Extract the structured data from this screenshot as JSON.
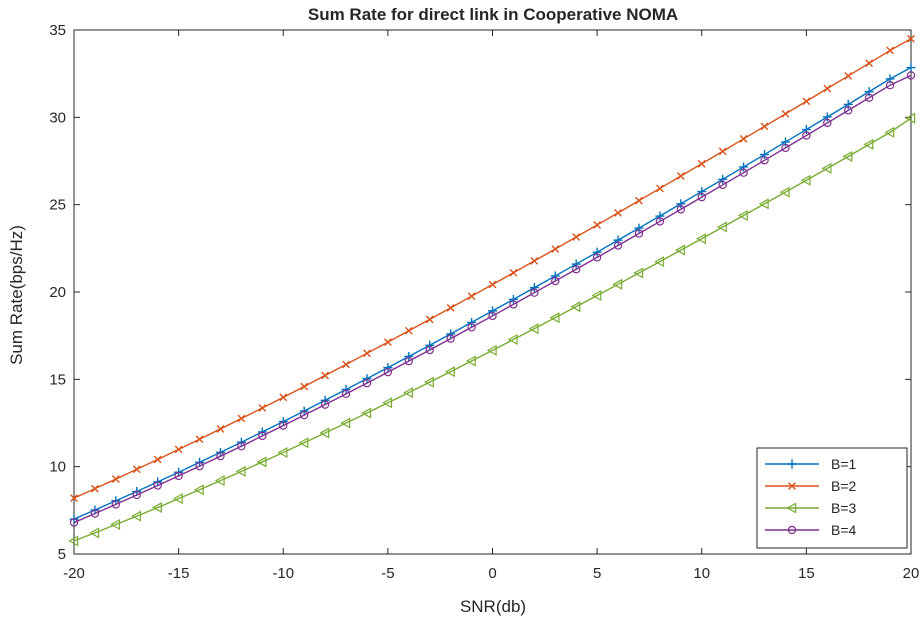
{
  "chart_data": {
    "type": "line",
    "title": "Sum Rate for direct link in Cooperative NOMA",
    "xlabel": "SNR(db)",
    "ylabel": "Sum Rate(bps/Hz)",
    "xlim": [
      -20,
      20
    ],
    "ylim": [
      5,
      35
    ],
    "xticks": [
      -20,
      -15,
      -10,
      -5,
      0,
      5,
      10,
      15,
      20
    ],
    "yticks": [
      5,
      10,
      15,
      20,
      25,
      30,
      35
    ],
    "grid": false,
    "legend_position": "bottom-right",
    "x": [
      -20,
      -19,
      -18,
      -17,
      -16,
      -15,
      -14,
      -13,
      -12,
      -11,
      -10,
      -9,
      -8,
      -7,
      -6,
      -5,
      -4,
      -3,
      -2,
      -1,
      0,
      1,
      2,
      3,
      4,
      5,
      6,
      7,
      8,
      9,
      10,
      11,
      12,
      13,
      14,
      15,
      16,
      17,
      18,
      19,
      20
    ],
    "series": [
      {
        "name": "B=1",
        "color": "#0072BD",
        "marker": "plus",
        "values": [
          7.0,
          7.52,
          8.05,
          8.58,
          9.13,
          9.68,
          10.25,
          10.82,
          11.4,
          11.99,
          12.58,
          13.19,
          13.8,
          14.42,
          15.04,
          15.67,
          16.31,
          16.95,
          17.6,
          18.26,
          18.92,
          19.58,
          20.25,
          20.92,
          21.6,
          22.28,
          22.97,
          23.66,
          24.35,
          25.05,
          25.75,
          26.45,
          27.16,
          27.87,
          28.59,
          29.3,
          30.02,
          30.74,
          31.47,
          32.2,
          32.85
        ]
      },
      {
        "name": "B=2",
        "color": "#D95319",
        "marker": "x",
        "values": [
          8.2,
          8.74,
          9.29,
          9.85,
          10.41,
          10.99,
          11.57,
          12.16,
          12.76,
          13.36,
          13.97,
          14.59,
          15.22,
          15.85,
          16.49,
          17.13,
          17.78,
          18.43,
          19.09,
          19.76,
          20.43,
          21.1,
          21.78,
          22.46,
          23.15,
          23.84,
          24.53,
          25.23,
          25.93,
          26.64,
          27.34,
          28.05,
          28.77,
          29.48,
          30.2,
          30.92,
          31.65,
          32.37,
          33.1,
          33.83,
          34.5
        ]
      },
      {
        "name": "B=3",
        "color": "#77AC30",
        "marker": "triangle-left",
        "values": [
          5.75,
          6.21,
          6.69,
          7.17,
          7.66,
          8.17,
          8.68,
          9.2,
          9.73,
          10.27,
          10.81,
          11.37,
          11.93,
          12.5,
          13.07,
          13.66,
          14.24,
          14.84,
          15.44,
          16.05,
          16.66,
          17.28,
          17.9,
          18.53,
          19.16,
          19.8,
          20.44,
          21.09,
          21.74,
          22.4,
          23.05,
          23.72,
          24.38,
          25.05,
          25.72,
          26.4,
          27.08,
          27.76,
          28.45,
          29.14,
          29.95
        ]
      },
      {
        "name": "B=4",
        "color": "#7E2F8E",
        "marker": "circle",
        "values": [
          6.8,
          7.32,
          7.84,
          8.38,
          8.92,
          9.47,
          10.03,
          10.6,
          11.17,
          11.76,
          12.35,
          12.95,
          13.55,
          14.17,
          14.78,
          15.41,
          16.04,
          16.68,
          17.33,
          17.98,
          18.63,
          19.29,
          19.96,
          20.63,
          21.3,
          21.98,
          22.66,
          23.35,
          24.04,
          24.73,
          25.43,
          26.13,
          26.83,
          27.54,
          28.25,
          28.96,
          29.68,
          30.4,
          31.12,
          31.84,
          32.4
        ]
      }
    ]
  }
}
